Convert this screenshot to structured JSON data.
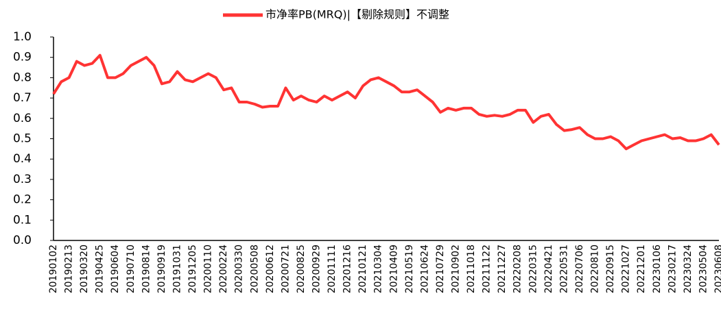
{
  "chart_data": {
    "type": "line",
    "series": [
      {
        "name": "市净率PB(MRQ)|【剔除规则】不调整",
        "color": "#ff3333",
        "values": [
          0.72,
          0.78,
          0.8,
          0.88,
          0.86,
          0.87,
          0.91,
          0.8,
          0.8,
          0.82,
          0.86,
          0.88,
          0.9,
          0.86,
          0.77,
          0.78,
          0.83,
          0.79,
          0.78,
          0.8,
          0.82,
          0.8,
          0.74,
          0.75,
          0.68,
          0.68,
          0.67,
          0.655,
          0.66,
          0.66,
          0.75,
          0.69,
          0.71,
          0.69,
          0.68,
          0.71,
          0.69,
          0.71,
          0.73,
          0.7,
          0.76,
          0.79,
          0.8,
          0.78,
          0.76,
          0.73,
          0.73,
          0.74,
          0.71,
          0.68,
          0.63,
          0.65,
          0.64,
          0.65,
          0.65,
          0.62,
          0.61,
          0.615,
          0.61,
          0.62,
          0.64,
          0.64,
          0.58,
          0.61,
          0.62,
          0.57,
          0.54,
          0.545,
          0.555,
          0.52,
          0.5,
          0.5,
          0.51,
          0.49,
          0.45,
          0.47,
          0.49,
          0.5,
          0.51,
          0.52,
          0.5,
          0.505,
          0.49,
          0.49,
          0.5,
          0.52,
          0.47
        ]
      }
    ],
    "categories": [
      "20190102",
      null,
      "20190213",
      null,
      "20190320",
      null,
      "20190425",
      null,
      "20190604",
      null,
      "20190710",
      null,
      "20190814",
      null,
      "20190919",
      null,
      "20191031",
      null,
      "20191205",
      null,
      "20200110",
      null,
      "20200224",
      null,
      "20200330",
      null,
      "20200508",
      null,
      "20200612",
      null,
      "20200721",
      null,
      "20200825",
      null,
      "20200929",
      null,
      "20201111",
      null,
      "20201216",
      null,
      "20210121",
      null,
      "20210304",
      null,
      "20210409",
      null,
      "20210519",
      null,
      "20210624",
      null,
      "20210729",
      null,
      "20210902",
      null,
      "20211018",
      null,
      "20211122",
      null,
      "20211227",
      null,
      "20220208",
      null,
      "20220315",
      null,
      "20220421",
      null,
      "20220531",
      null,
      "20220706",
      null,
      "20220810",
      null,
      "20220915",
      null,
      "20221027",
      null,
      "20221201",
      null,
      "20230106",
      null,
      "20230217",
      null,
      "20230324",
      null,
      "20230504",
      null,
      "20230608"
    ],
    "ylim": [
      0,
      1
    ],
    "yticks": [
      {
        "value": 0,
        "label": "0.0"
      },
      0.1,
      0.2,
      0.3,
      0.4,
      0.5,
      0.6,
      0.7,
      0.8,
      0.9,
      {
        "value": 1,
        "label": "1.0"
      }
    ],
    "legend": "top"
  }
}
